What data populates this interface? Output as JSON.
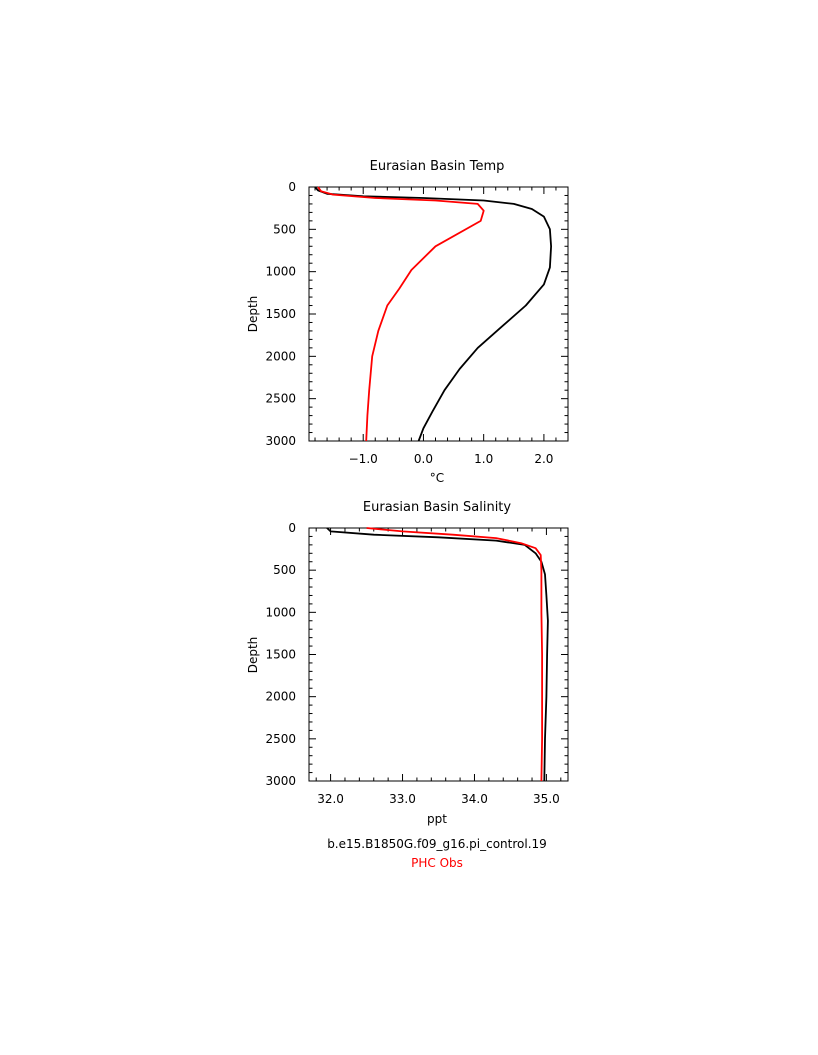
{
  "chart_data": [
    {
      "type": "line",
      "title": "Eurasian Basin Temp",
      "xlabel": "°C",
      "ylabel": "Depth",
      "xlim": [
        -1.9,
        2.4
      ],
      "ylim": [
        0,
        3000
      ],
      "y_inverted": true,
      "xticks": [
        -1.0,
        0.0,
        1.0,
        2.0
      ],
      "xtick_labels": [
        "−1.0",
        "0.0",
        "1.0",
        "2.0"
      ],
      "yticks": [
        0,
        500,
        1000,
        1500,
        2000,
        2500,
        3000
      ],
      "ytick_labels": [
        "0",
        "500",
        "1000",
        "1500",
        "2000",
        "2500",
        "3000"
      ],
      "series": [
        {
          "color": "#000000",
          "points": [
            [
              -1.8,
              0
            ],
            [
              -1.75,
              40
            ],
            [
              -1.6,
              80
            ],
            [
              -1.0,
              110
            ],
            [
              0.0,
              130
            ],
            [
              1.0,
              160
            ],
            [
              1.5,
              200
            ],
            [
              1.8,
              260
            ],
            [
              2.0,
              350
            ],
            [
              2.1,
              500
            ],
            [
              2.12,
              700
            ],
            [
              2.1,
              950
            ],
            [
              2.0,
              1150
            ],
            [
              1.7,
              1400
            ],
            [
              1.3,
              1650
            ],
            [
              0.9,
              1900
            ],
            [
              0.6,
              2150
            ],
            [
              0.35,
              2400
            ],
            [
              0.15,
              2650
            ],
            [
              0.0,
              2850
            ],
            [
              -0.08,
              3000
            ]
          ]
        },
        {
          "color": "#ff0000",
          "points": [
            [
              -1.75,
              0
            ],
            [
              -1.7,
              50
            ],
            [
              -1.5,
              90
            ],
            [
              -0.8,
              130
            ],
            [
              0.2,
              160
            ],
            [
              0.9,
              200
            ],
            [
              1.0,
              280
            ],
            [
              0.95,
              400
            ],
            [
              0.2,
              700
            ],
            [
              -0.2,
              980
            ],
            [
              -0.4,
              1200
            ],
            [
              -0.6,
              1400
            ],
            [
              -0.75,
              1700
            ],
            [
              -0.85,
              2000
            ],
            [
              -0.9,
              2400
            ],
            [
              -0.93,
              2700
            ],
            [
              -0.95,
              3000
            ]
          ]
        }
      ]
    },
    {
      "type": "line",
      "title": "Eurasian Basin Salinity",
      "xlabel": "ppt",
      "ylabel": "Depth",
      "xlim": [
        31.7,
        35.3
      ],
      "ylim": [
        0,
        3000
      ],
      "y_inverted": true,
      "xticks": [
        32.0,
        33.0,
        34.0,
        35.0
      ],
      "xtick_labels": [
        "32.0",
        "33.0",
        "34.0",
        "35.0"
      ],
      "yticks": [
        0,
        500,
        1000,
        1500,
        2000,
        2500,
        3000
      ],
      "ytick_labels": [
        "0",
        "500",
        "1000",
        "1500",
        "2000",
        "2500",
        "3000"
      ],
      "series": [
        {
          "color": "#000000",
          "points": [
            [
              31.95,
              0
            ],
            [
              32.0,
              40
            ],
            [
              32.6,
              80
            ],
            [
              33.5,
              110
            ],
            [
              34.3,
              150
            ],
            [
              34.7,
              200
            ],
            [
              34.85,
              300
            ],
            [
              34.93,
              400
            ],
            [
              34.98,
              550
            ],
            [
              35.0,
              800
            ],
            [
              35.02,
              1100
            ],
            [
              35.01,
              1500
            ],
            [
              35.0,
              2000
            ],
            [
              34.98,
              2500
            ],
            [
              34.97,
              3000
            ]
          ]
        },
        {
          "color": "#ff0000",
          "points": [
            [
              32.5,
              0
            ],
            [
              33.0,
              40
            ],
            [
              33.7,
              80
            ],
            [
              34.3,
              120
            ],
            [
              34.65,
              180
            ],
            [
              34.85,
              240
            ],
            [
              34.92,
              320
            ],
            [
              34.93,
              500
            ],
            [
              34.93,
              1000
            ],
            [
              34.94,
              1500
            ],
            [
              34.94,
              2000
            ],
            [
              34.94,
              2500
            ],
            [
              34.93,
              3000
            ]
          ]
        }
      ]
    }
  ],
  "footer": {
    "case_name": "b.e15.B1850G.f09_g16.pi_control.19",
    "obs_label": "PHC Obs",
    "case_color": "#000000",
    "obs_color": "#ff0000"
  }
}
